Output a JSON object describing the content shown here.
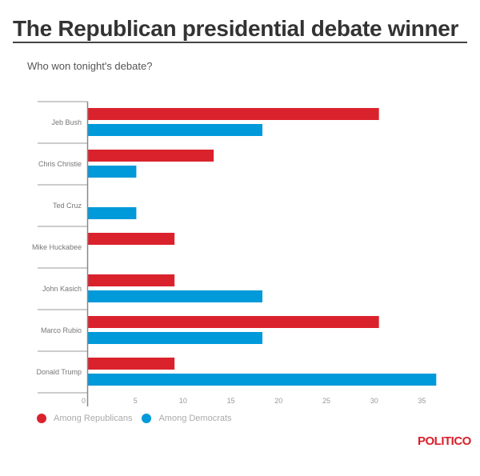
{
  "title": "The Republican presidential debate winner",
  "subtitle": "Who won tonight's debate?",
  "brand": "POLITICO",
  "chart_data": {
    "type": "bar",
    "orientation": "horizontal",
    "categories": [
      "Jeb Bush",
      "Chris Christie",
      "Ted Cruz",
      "Mike Huckabee",
      "John Kasich",
      "Marco Rubio",
      "Donald Trump"
    ],
    "series": [
      {
        "name": "Among Republicans",
        "color": "#da222d",
        "values": [
          30.5,
          13.2,
          0,
          9.1,
          9.1,
          30.5,
          9.1
        ]
      },
      {
        "name": "Among Democrats",
        "color": "#0099d9",
        "values": [
          18.3,
          5.1,
          5.1,
          0,
          18.3,
          18.3,
          36.5
        ]
      }
    ],
    "xticks": [
      "0",
      "5",
      "10",
      "15",
      "20",
      "25",
      "30",
      "35"
    ],
    "xlim": [
      0,
      37
    ],
    "grid": false,
    "legend": "bottom-left"
  }
}
